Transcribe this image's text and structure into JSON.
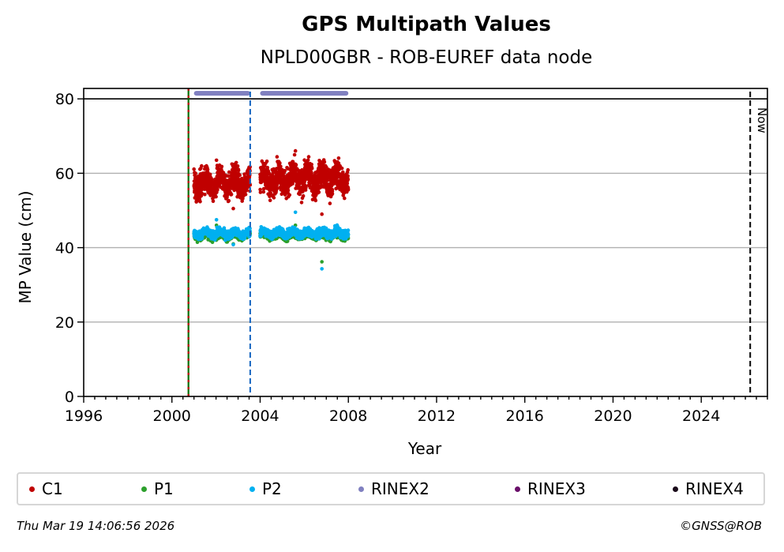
{
  "chart_data": {
    "type": "scatter",
    "title": "GPS Multipath Values",
    "subtitle": "NPLD00GBR - ROB-EUREF data node",
    "xlabel": "Year",
    "ylabel": "MP Value (cm)",
    "xlim": [
      1996,
      2027
    ],
    "ylim": [
      0,
      82.8
    ],
    "xticks": [
      1996,
      2000,
      2004,
      2008,
      2012,
      2016,
      2020,
      2024
    ],
    "yticks": [
      0,
      20,
      40,
      60,
      80
    ],
    "grid": "horizontal",
    "reference_line_y": 80,
    "series": [
      {
        "name": "C1",
        "color": "#c00000",
        "segments": [
          {
            "x_start": 2001.0,
            "x_end": 2003.55,
            "y_mean": 57.5,
            "y_spread": 3.2,
            "y_min": 50.5,
            "y_max": 63.5
          },
          {
            "x_start": 2004.0,
            "x_end": 2008.0,
            "y_mean": 58.5,
            "y_spread": 3.4,
            "y_min": 49.0,
            "y_max": 66.0
          }
        ]
      },
      {
        "name": "P1",
        "color": "#2ca02c",
        "segments": [
          {
            "x_start": 2001.0,
            "x_end": 2003.55,
            "y_mean": 43.2,
            "y_spread": 0.9,
            "y_min": 41.0,
            "y_max": 46.0
          },
          {
            "x_start": 2004.0,
            "x_end": 2008.0,
            "y_mean": 43.3,
            "y_spread": 0.9,
            "y_min": 36.2,
            "y_max": 46.0
          }
        ]
      },
      {
        "name": "P2",
        "color": "#00b0f0",
        "segments": [
          {
            "x_start": 2001.0,
            "x_end": 2003.55,
            "y_mean": 43.8,
            "y_spread": 1.0,
            "y_min": 40.8,
            "y_max": 47.5
          },
          {
            "x_start": 2004.0,
            "x_end": 2008.0,
            "y_mean": 43.9,
            "y_spread": 1.0,
            "y_min": 34.3,
            "y_max": 49.5
          }
        ]
      },
      {
        "name": "RINEX2",
        "color": "#8080c0",
        "periods": [
          [
            2001.0,
            2003.55
          ],
          [
            2004.0,
            2008.0
          ]
        ],
        "y": 81.5
      },
      {
        "name": "RINEX3",
        "color": "#6a0f6a",
        "periods": []
      },
      {
        "name": "RINEX4",
        "color": "#1a0a1a",
        "periods": []
      }
    ],
    "vertical_lines": [
      {
        "name": "station-start",
        "x": 2000.75,
        "colors": [
          "#c00000",
          "#007000"
        ],
        "style": "dashed-two-tone"
      },
      {
        "name": "equipment-change",
        "x": 2003.55,
        "colors": [
          "#1565c0"
        ],
        "style": "dashed"
      },
      {
        "name": "now",
        "x": 2026.22,
        "colors": [
          "#000000"
        ],
        "style": "dashed",
        "label": "Now"
      }
    ],
    "legend": [
      "C1",
      "P1",
      "P2",
      "RINEX2",
      "RINEX3",
      "RINEX4"
    ],
    "legend_position": "bottom"
  },
  "footer": {
    "timestamp": "Thu Mar 19 14:06:56 2026",
    "copyright": "©GNSS@ROB"
  }
}
